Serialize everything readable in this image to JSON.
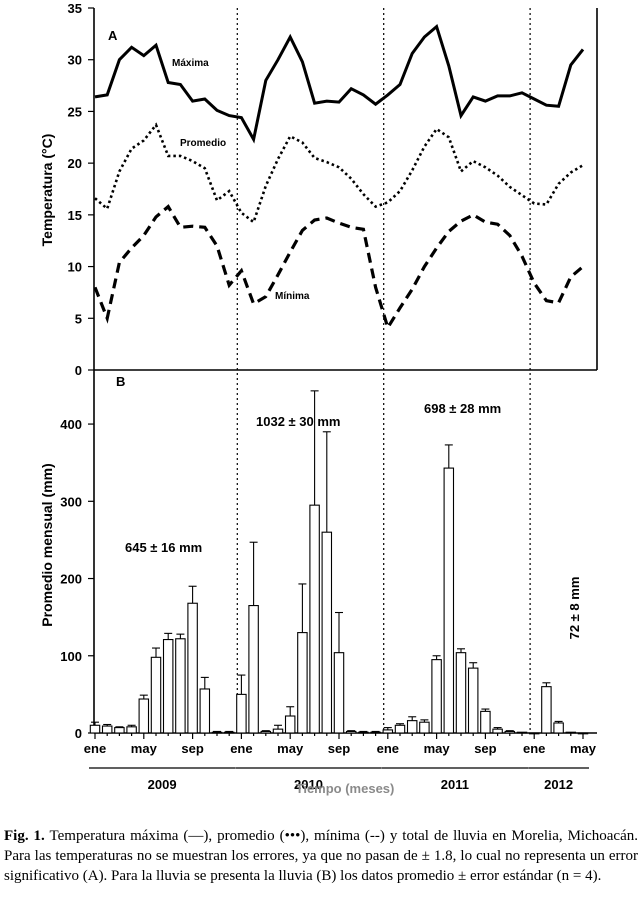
{
  "caption": {
    "label": "Fig. 1.",
    "text": "Temperatura máxima (—), promedio (•••), mínima (--) y total de lluvia en Morelia, Michoacán. Para las temperaturas no se muestran los errores, ya que no pasan de ± 1.8, lo cual no representa un error significativo (A). Para la lluvia se presenta la lluvia (B) los datos promedio ± error estándar (n = 4)."
  },
  "x_axis": {
    "month_ticks": [
      {
        "label": "ene",
        "index": 0
      },
      {
        "label": "may",
        "index": 4
      },
      {
        "label": "sep",
        "index": 8
      },
      {
        "label": "ene",
        "index": 12
      },
      {
        "label": "may",
        "index": 16
      },
      {
        "label": "sep",
        "index": 20
      },
      {
        "label": "ene",
        "index": 24
      },
      {
        "label": "may",
        "index": 28
      },
      {
        "label": "sep",
        "index": 32
      },
      {
        "label": "ene",
        "index": 36
      },
      {
        "label": "may",
        "index": 40
      }
    ],
    "years": [
      {
        "label": "2009",
        "start": 0,
        "end": 11
      },
      {
        "label": "2010",
        "start": 12,
        "end": 23
      },
      {
        "label": "2011",
        "start": 24,
        "end": 35
      },
      {
        "label": "2012",
        "start": 36,
        "end": 40
      }
    ],
    "title": "Tiempo (meses)"
  },
  "chart_data": [
    {
      "type": "line",
      "panel": "A",
      "ylabel": "Temperatura (°C)",
      "ylim": [
        0,
        35
      ],
      "yticks": [
        0,
        5,
        10,
        15,
        20,
        25,
        30,
        35
      ],
      "series": [
        {
          "name": "Máxima",
          "style": "solid",
          "values": [
            26.4,
            26.6,
            30.0,
            31.2,
            30.4,
            31.4,
            27.8,
            27.6,
            26.0,
            26.2,
            25.1,
            24.6,
            24.4,
            22.3,
            28.0,
            30.0,
            32.2,
            29.8,
            25.8,
            26.0,
            25.9,
            27.2,
            26.6,
            25.7,
            26.6,
            27.6,
            30.6,
            32.2,
            33.2,
            29.4,
            24.6,
            26.4,
            26.0,
            26.5,
            26.5,
            26.8,
            26.2,
            25.6,
            25.5,
            29.5,
            31.0
          ]
        },
        {
          "name": "Promedio",
          "style": "dotted",
          "values": [
            16.6,
            15.6,
            19.2,
            21.4,
            22.2,
            23.7,
            20.7,
            20.7,
            20.2,
            19.5,
            16.4,
            17.3,
            15.2,
            14.3,
            17.8,
            20.4,
            22.6,
            22.0,
            20.5,
            20.1,
            19.6,
            18.5,
            17.0,
            15.8,
            16.2,
            17.3,
            19.3,
            21.6,
            23.3,
            22.5,
            19.2,
            20.2,
            19.6,
            18.8,
            17.7,
            16.9,
            16.1,
            16.0,
            18.0,
            19.1,
            19.8
          ]
        },
        {
          "name": "Mínima",
          "style": "dashed",
          "values": [
            8.0,
            5.0,
            10.4,
            11.8,
            13.0,
            14.8,
            15.8,
            13.8,
            13.9,
            13.8,
            12.0,
            8.2,
            9.6,
            6.4,
            7.1,
            9.2,
            11.4,
            13.5,
            14.5,
            14.7,
            14.2,
            13.8,
            13.6,
            8.0,
            4.1,
            6.0,
            7.8,
            10.0,
            11.8,
            13.4,
            14.4,
            15.0,
            14.3,
            14.1,
            13.0,
            11.0,
            8.4,
            6.7,
            6.5,
            9.0,
            10.0
          ]
        }
      ],
      "annotations": [
        {
          "text": "A"
        },
        {
          "text": "Máxima"
        },
        {
          "text": "Promedio"
        },
        {
          "text": "Mínima"
        }
      ]
    },
    {
      "type": "bar",
      "panel": "B",
      "ylabel": "Promedio mensual (mm)",
      "ylim": [
        0,
        470
      ],
      "yticks": [
        0,
        100,
        200,
        300,
        400
      ],
      "series": [
        {
          "name": "Lluvia mensual",
          "values": [
            10,
            9,
            7,
            8,
            44,
            98,
            121,
            122,
            168,
            57,
            1,
            1,
            50,
            165,
            2,
            5,
            22,
            130,
            295,
            260,
            104,
            2,
            1,
            1,
            4,
            10,
            16,
            14,
            95,
            343,
            104,
            84,
            28,
            5,
            2,
            1,
            0,
            60,
            13,
            1,
            0
          ],
          "errors": [
            4,
            2,
            1,
            2,
            5,
            12,
            8,
            6,
            22,
            15,
            1,
            1,
            25,
            82,
            1,
            5,
            12,
            63,
            148,
            130,
            52,
            1,
            1,
            1,
            3,
            2,
            5,
            3,
            5,
            30,
            5,
            7,
            3,
            2,
            1,
            0,
            0,
            5,
            2,
            0,
            0
          ]
        }
      ],
      "annotations": [
        {
          "text": "B"
        },
        {
          "text": "645 ± 16  mm"
        },
        {
          "text": "1032 ± 30 mm"
        },
        {
          "text": "698 ± 28 mm"
        },
        {
          "text": "72 ± 8 mm"
        }
      ]
    }
  ]
}
